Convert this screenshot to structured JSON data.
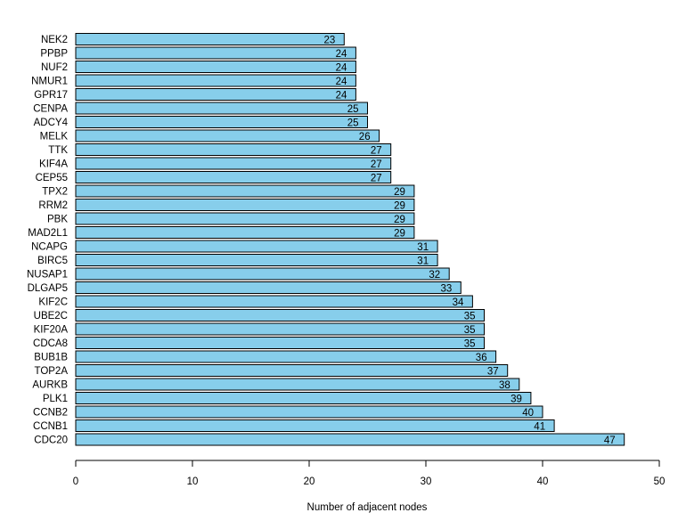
{
  "chart_data": {
    "type": "bar",
    "orientation": "horizontal",
    "categories": [
      "NEK2",
      "PPBP",
      "NUF2",
      "NMUR1",
      "GPR17",
      "CENPA",
      "ADCY4",
      "MELK",
      "TTK",
      "KIF4A",
      "CEP55",
      "TPX2",
      "RRM2",
      "PBK",
      "MAD2L1",
      "NCAPG",
      "BIRC5",
      "NUSAP1",
      "DLGAP5",
      "KIF2C",
      "UBE2C",
      "KIF20A",
      "CDCA8",
      "BUB1B",
      "TOP2A",
      "AURKB",
      "PLK1",
      "CCNB2",
      "CCNB1",
      "CDC20"
    ],
    "values": [
      23,
      24,
      24,
      24,
      24,
      25,
      25,
      26,
      27,
      27,
      27,
      29,
      29,
      29,
      29,
      31,
      31,
      32,
      33,
      34,
      35,
      35,
      35,
      36,
      37,
      38,
      39,
      40,
      41,
      47
    ],
    "value_labels": [
      "23",
      "24",
      "24",
      "24",
      "24",
      "25",
      "25",
      "26",
      "27",
      "27",
      "27",
      "29",
      "29",
      "29",
      "29",
      "31",
      "31",
      "32",
      "33",
      "34",
      "35",
      "35",
      "35",
      "36",
      "37",
      "38",
      "39",
      "40",
      "41",
      "47"
    ],
    "xlabel": "Number of adjacent nodes",
    "ylabel": "",
    "title": "",
    "xlim": [
      0,
      50
    ],
    "xticks": [
      0,
      10,
      20,
      30,
      40,
      50
    ],
    "xtick_labels": [
      "0",
      "10",
      "20",
      "30",
      "40",
      "50"
    ],
    "bar_color": "#87CEEB",
    "bar_edge_color": "#000000",
    "grid": false,
    "legend": false
  }
}
